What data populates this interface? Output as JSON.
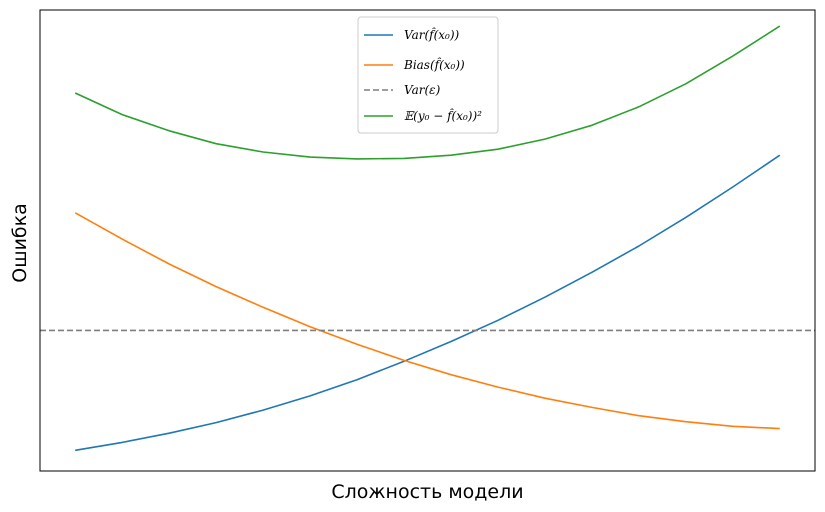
{
  "chart_data": {
    "type": "line",
    "title": "",
    "xlabel": "Сложность модели",
    "ylabel": "Ошибка",
    "x": [
      0,
      1,
      2,
      3,
      4,
      5,
      6,
      7,
      8,
      9,
      10,
      11,
      12,
      13,
      14,
      15
    ],
    "xlim": [
      -0.75,
      15.75
    ],
    "ylim": [
      0,
      1.0
    ],
    "grid": false,
    "legend_position": "top-center",
    "series": [
      {
        "name": "Var(f̂(x₀))",
        "color": "#1f77b4",
        "dash": "solid",
        "values": [
          0.045,
          0.062,
          0.082,
          0.105,
          0.132,
          0.163,
          0.198,
          0.238,
          0.281,
          0.327,
          0.377,
          0.431,
          0.488,
          0.55,
          0.616,
          0.685
        ]
      },
      {
        "name": "Bias(f̂(x₀))",
        "color": "#ff7f0e",
        "dash": "solid",
        "values": [
          0.56,
          0.503,
          0.449,
          0.4,
          0.355,
          0.313,
          0.275,
          0.24,
          0.209,
          0.182,
          0.158,
          0.138,
          0.12,
          0.107,
          0.097,
          0.092
        ]
      },
      {
        "name": "Var(ε)",
        "color": "#7f7f7f",
        "dash": "dashed",
        "values": [
          0.305,
          0.305,
          0.305,
          0.305,
          0.305,
          0.305,
          0.305,
          0.305,
          0.305,
          0.305,
          0.305,
          0.305,
          0.305,
          0.305,
          0.305,
          0.305
        ]
      },
      {
        "name": "𝔼(y₀ − f̂(x₀))²",
        "color": "#2ca02c",
        "dash": "solid",
        "values": [
          0.82,
          0.773,
          0.738,
          0.71,
          0.692,
          0.681,
          0.677,
          0.678,
          0.685,
          0.698,
          0.72,
          0.75,
          0.79,
          0.84,
          0.9,
          0.965
        ]
      }
    ]
  }
}
